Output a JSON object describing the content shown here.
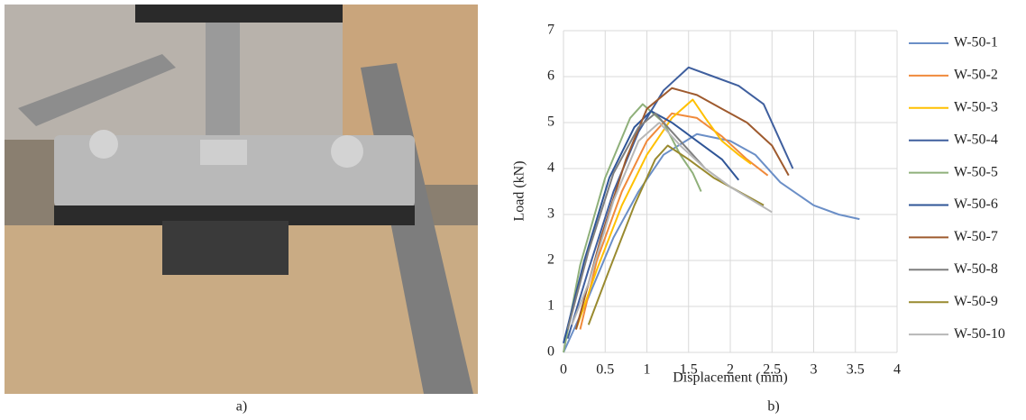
{
  "panels": [
    "a)",
    "b)"
  ],
  "chart_data": {
    "type": "line",
    "x_label": "Displacement (mm)",
    "y_label": "Load (kN)",
    "xlim": [
      0,
      4
    ],
    "xticks": [
      0,
      0.5,
      1,
      1.5,
      2,
      2.5,
      3,
      3.5,
      4
    ],
    "ylim": [
      0,
      7
    ],
    "yticks": [
      0,
      1,
      2,
      3,
      4,
      5,
      6,
      7
    ],
    "grid": true,
    "legend": "right",
    "series": [
      {
        "name": "W-50-1",
        "color": "#6b8fc7",
        "x": [
          0,
          0.3,
          0.6,
          0.9,
          1.2,
          1.6,
          2.0,
          2.3,
          2.6,
          3.0,
          3.3,
          3.55
        ],
        "values": [
          0,
          1.2,
          2.5,
          3.5,
          4.3,
          4.75,
          4.6,
          4.3,
          3.7,
          3.2,
          3.0,
          2.9
        ]
      },
      {
        "name": "W-50-2",
        "color": "#f08a3c",
        "x": [
          0.2,
          0.4,
          0.7,
          1.0,
          1.3,
          1.6,
          1.9,
          2.2,
          2.45
        ],
        "values": [
          0.5,
          2,
          3.5,
          4.6,
          5.2,
          5.1,
          4.7,
          4.2,
          3.85
        ]
      },
      {
        "name": "W-50-3",
        "color": "#ffc000",
        "x": [
          0.15,
          0.4,
          0.7,
          1.0,
          1.3,
          1.55,
          1.7,
          1.9,
          2.1,
          2.25
        ],
        "values": [
          0.5,
          1.8,
          3.2,
          4.3,
          5.1,
          5.5,
          5.1,
          4.6,
          4.3,
          4.1
        ]
      },
      {
        "name": "W-50-4",
        "color": "#3f5f9e",
        "x": [
          0.05,
          0.3,
          0.6,
          0.9,
          1.2,
          1.5,
          1.8,
          2.1,
          2.4,
          2.6,
          2.75
        ],
        "values": [
          0.3,
          1.8,
          3.5,
          4.8,
          5.7,
          6.2,
          6.0,
          5.8,
          5.4,
          4.6,
          4.0
        ]
      },
      {
        "name": "W-50-5",
        "color": "#8fb07a",
        "x": [
          0,
          0.2,
          0.5,
          0.8,
          0.95,
          1.2,
          1.4,
          1.55,
          1.65
        ],
        "values": [
          0,
          1.9,
          3.8,
          5.1,
          5.4,
          5.0,
          4.3,
          3.9,
          3.5
        ]
      },
      {
        "name": "W-50-6",
        "color": "#2f5597",
        "x": [
          0,
          0.25,
          0.55,
          0.85,
          1.05,
          1.3,
          1.6,
          1.9,
          2.1
        ],
        "values": [
          0.2,
          2,
          3.8,
          4.9,
          5.25,
          5.0,
          4.6,
          4.2,
          3.75
        ]
      },
      {
        "name": "W-50-7",
        "color": "#9e5a2e",
        "x": [
          0.15,
          0.45,
          0.75,
          1.0,
          1.3,
          1.6,
          1.9,
          2.2,
          2.5,
          2.7
        ],
        "values": [
          0.5,
          2.5,
          4.2,
          5.3,
          5.75,
          5.6,
          5.3,
          5.0,
          4.5,
          3.85
        ]
      },
      {
        "name": "W-50-8",
        "color": "#7f7f7f",
        "x": [
          0.05,
          0.3,
          0.6,
          0.9,
          1.1,
          1.4,
          1.7,
          2.0,
          2.4
        ],
        "values": [
          0.5,
          2.2,
          3.9,
          4.9,
          5.2,
          4.6,
          4.0,
          3.6,
          3.2
        ]
      },
      {
        "name": "W-50-9",
        "color": "#998a2f",
        "x": [
          0.3,
          0.55,
          0.85,
          1.1,
          1.25,
          1.5,
          1.8,
          2.1,
          2.4
        ],
        "values": [
          0.6,
          1.8,
          3.2,
          4.2,
          4.5,
          4.2,
          3.8,
          3.5,
          3.2
        ]
      },
      {
        "name": "W-50-10",
        "color": "#b7b7b7",
        "x": [
          0.1,
          0.3,
          0.6,
          0.9,
          1.15,
          1.4,
          1.7,
          2.0,
          2.5
        ],
        "values": [
          0.6,
          1.5,
          3.3,
          4.6,
          5.0,
          4.5,
          4.0,
          3.6,
          3.05
        ]
      }
    ]
  }
}
